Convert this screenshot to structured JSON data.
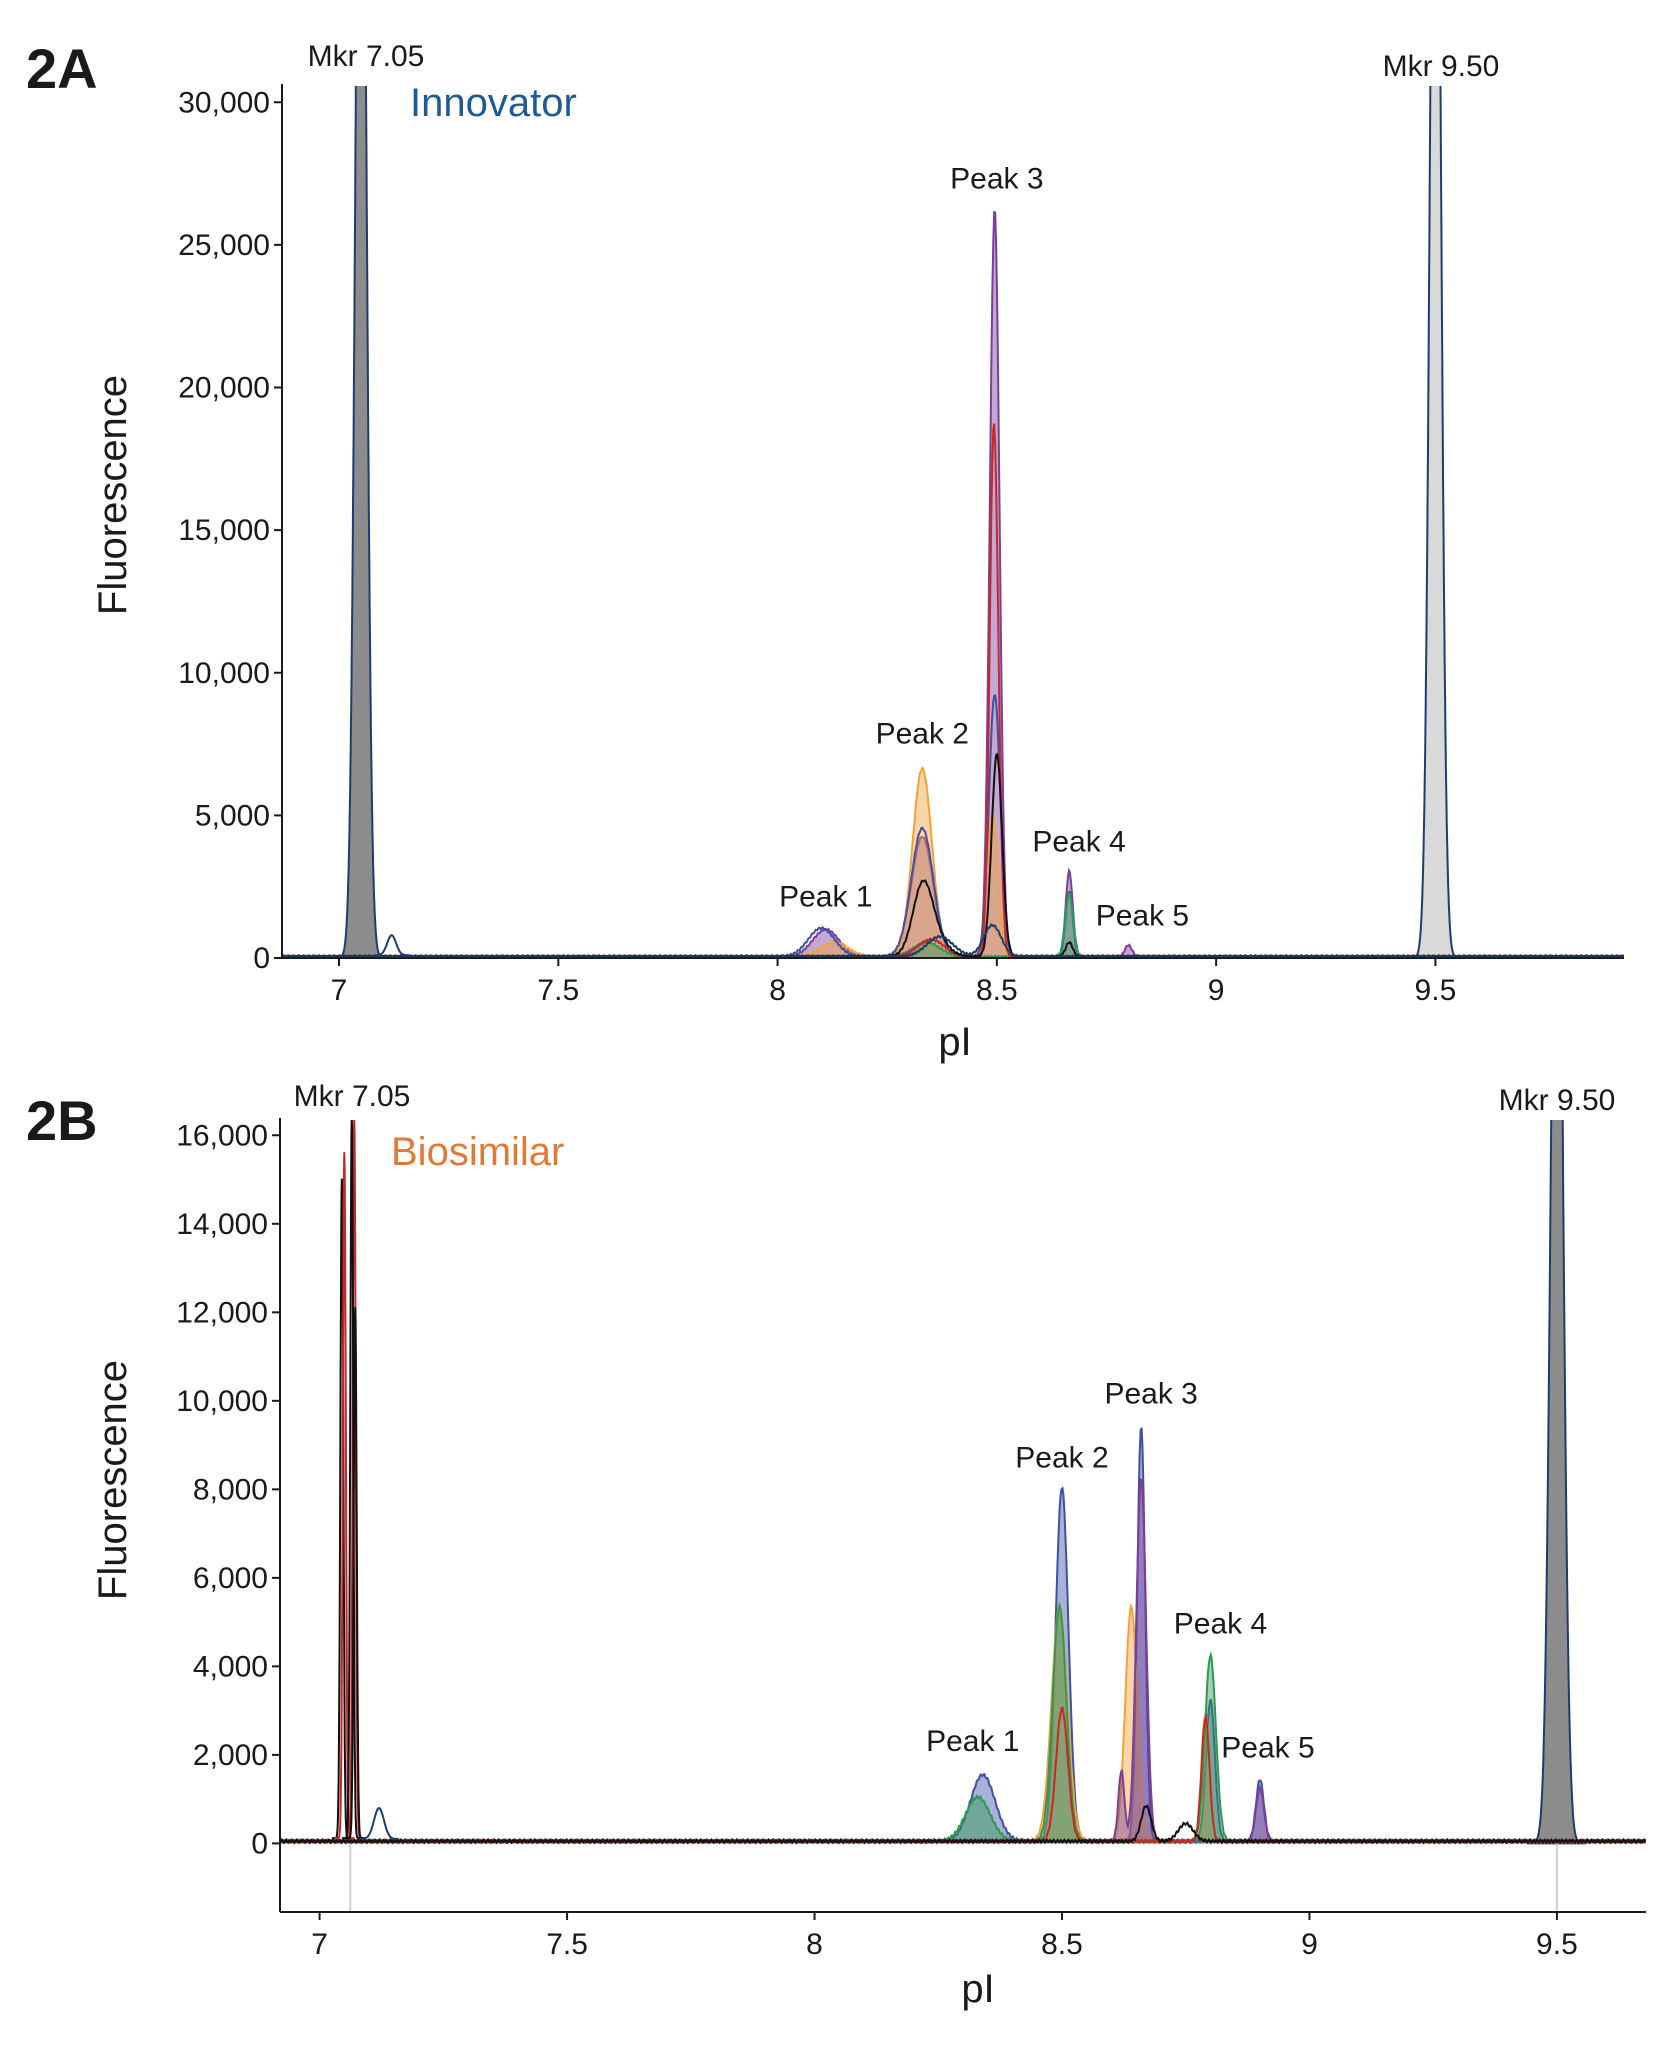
{
  "colors": {
    "axis": "#1a1a1a",
    "marker_fill": "#8c8c8c",
    "marker_light_fill": "#d9d9d9",
    "innovator_label": "#1f5a96",
    "biosimilar_label": "#e07a34",
    "trace_blue": "#3f51a5",
    "trace_purple": "#7b3f9a",
    "trace_orange": "#f5a23a",
    "trace_green": "#2e9a52",
    "trace_red": "#c62828",
    "trace_black": "#111111",
    "trace_navy": "#1c3d6e"
  },
  "chart_data": [
    {
      "panel": "2A",
      "type": "area",
      "title": "",
      "annotation": "Innovator",
      "xlabel": "pI",
      "ylabel": "Fluorescence",
      "xlim": [
        6.87,
        9.93
      ],
      "ylim": [
        0,
        30500
      ],
      "x_ticks": [
        7,
        7.5,
        8,
        8.5,
        9,
        9.5
      ],
      "x_tick_labels": [
        "7",
        "7.5",
        "8",
        "8.5",
        "9",
        "9.5"
      ],
      "y_ticks": [
        0,
        5000,
        10000,
        15000,
        20000,
        25000,
        30000
      ],
      "y_tick_labels": [
        "0",
        "5,000",
        "10,000",
        "15,000",
        "20,000",
        "25,000",
        "30,000"
      ],
      "grid": false,
      "markers": [
        {
          "label": "Mkr 7.05",
          "x": 7.05,
          "height": 30500,
          "fill": "dark"
        },
        {
          "label": "Mkr 9.50",
          "x": 9.5,
          "height": 30500,
          "fill": "light"
        }
      ],
      "peak_labels": [
        {
          "label": "Peak 1",
          "x": 8.11,
          "y": 900
        },
        {
          "label": "Peak 2",
          "x": 8.33,
          "y": 6600
        },
        {
          "label": "Peak 3",
          "x": 8.5,
          "y": 26200
        },
        {
          "label": "Peak 4",
          "x": 8.66,
          "y": 3100
        },
        {
          "label": "Peak 5",
          "x": 8.8,
          "y": 500
        }
      ],
      "series": [
        {
          "color": "purple",
          "fill": true,
          "peaks": [
            {
              "x": 8.11,
              "h": 950,
              "w": 0.03
            },
            {
              "x": 8.33,
              "h": 4200,
              "w": 0.025
            },
            {
              "x": 8.495,
              "h": 26200,
              "w": 0.011
            },
            {
              "x": 8.665,
              "h": 3000,
              "w": 0.008
            },
            {
              "x": 8.8,
              "h": 400,
              "w": 0.008
            }
          ]
        },
        {
          "color": "orange",
          "fill": true,
          "peaks": [
            {
              "x": 8.13,
              "h": 500,
              "w": 0.03
            },
            {
              "x": 8.33,
              "h": 6600,
              "w": 0.022
            },
            {
              "x": 8.49,
              "h": 5000,
              "w": 0.012
            }
          ]
        },
        {
          "color": "blue",
          "fill": false,
          "peaks": [
            {
              "x": 8.1,
              "h": 1000,
              "w": 0.03
            },
            {
              "x": 8.33,
              "h": 4500,
              "w": 0.025
            },
            {
              "x": 8.495,
              "h": 9200,
              "w": 0.013
            },
            {
              "x": 8.665,
              "h": 2300,
              "w": 0.008
            }
          ]
        },
        {
          "color": "green",
          "fill": true,
          "peaks": [
            {
              "x": 8.665,
              "h": 2200,
              "w": 0.009
            },
            {
              "x": 8.34,
              "h": 500,
              "w": 0.03
            }
          ]
        },
        {
          "color": "red",
          "fill": false,
          "peaks": [
            {
              "x": 8.495,
              "h": 14500,
              "w": 0.01
            },
            {
              "x": 8.35,
              "h": 600,
              "w": 0.03
            },
            {
              "x": 8.49,
              "h": 4800,
              "w": 0.008
            }
          ]
        },
        {
          "color": "black",
          "fill": false,
          "peaks": [
            {
              "x": 8.33,
              "h": 2000,
              "w": 0.022
            },
            {
              "x": 8.5,
              "h": 7100,
              "w": 0.012
            },
            {
              "x": 8.665,
              "h": 500,
              "w": 0.008
            },
            {
              "x": 8.35,
              "h": 800,
              "w": 0.03
            }
          ]
        },
        {
          "color": "navy",
          "fill": false,
          "peaks": [
            {
              "x": 8.37,
              "h": 700,
              "w": 0.03
            },
            {
              "x": 8.49,
              "h": 1100,
              "w": 0.02
            }
          ]
        }
      ]
    },
    {
      "panel": "2B",
      "type": "area",
      "title": "",
      "annotation": "Biosimilar",
      "xlabel": "pI",
      "ylabel": "Fluorescence",
      "xlim": [
        6.92,
        9.68
      ],
      "ylim": [
        -1550,
        16300
      ],
      "x_ticks": [
        7,
        7.5,
        8,
        8.5,
        9,
        9.5
      ],
      "x_tick_labels": [
        "7",
        "7.5",
        "8",
        "8.5",
        "9",
        "9.5"
      ],
      "y_ticks": [
        0,
        2000,
        4000,
        6000,
        8000,
        10000,
        12000,
        14000,
        16000
      ],
      "y_tick_labels": [
        "0",
        "2,000",
        "4,000",
        "6,000",
        "8,000",
        "10,000",
        "12,000",
        "14,000",
        "16,000"
      ],
      "grid": false,
      "markers": [
        {
          "label": "Mkr 7.05",
          "x": 7.05,
          "height": 16300,
          "fill": "none"
        },
        {
          "label": "Mkr 9.50",
          "x": 9.5,
          "height": 16300,
          "fill": "dark"
        }
      ],
      "peak_labels": [
        {
          "label": "Peak 1",
          "x": 8.34,
          "y": 1500
        },
        {
          "label": "Peak 2",
          "x": 8.5,
          "y": 8000
        },
        {
          "label": "Peak 3",
          "x": 8.66,
          "y": 9400
        },
        {
          "label": "Peak 4",
          "x": 8.8,
          "y": 4200
        },
        {
          "label": "Peak 5",
          "x": 8.9,
          "y": 1400
        }
      ],
      "series": [
        {
          "color": "blue",
          "fill": true,
          "peaks": [
            {
              "x": 8.34,
              "h": 1500,
              "w": 0.025
            },
            {
              "x": 8.5,
              "h": 8000,
              "w": 0.013
            },
            {
              "x": 8.66,
              "h": 9400,
              "w": 0.008
            },
            {
              "x": 8.8,
              "h": 3200,
              "w": 0.009
            },
            {
              "x": 8.9,
              "h": 1400,
              "w": 0.008
            }
          ]
        },
        {
          "color": "orange",
          "fill": true,
          "peaks": [
            {
              "x": 8.495,
              "h": 5300,
              "w": 0.016
            },
            {
              "x": 8.64,
              "h": 5300,
              "w": 0.012
            },
            {
              "x": 8.79,
              "h": 2900,
              "w": 0.008
            }
          ]
        },
        {
          "color": "purple",
          "fill": true,
          "peaks": [
            {
              "x": 8.66,
              "h": 8200,
              "w": 0.01
            },
            {
              "x": 8.9,
              "h": 1200,
              "w": 0.008
            },
            {
              "x": 8.62,
              "h": 1600,
              "w": 0.006
            }
          ]
        },
        {
          "color": "green",
          "fill": true,
          "peaks": [
            {
              "x": 8.8,
              "h": 4200,
              "w": 0.011
            },
            {
              "x": 8.495,
              "h": 5300,
              "w": 0.014
            },
            {
              "x": 8.33,
              "h": 1000,
              "w": 0.025
            }
          ]
        },
        {
          "color": "red",
          "fill": false,
          "peaks": [
            {
              "x": 8.79,
              "h": 2800,
              "w": 0.008
            },
            {
              "x": 8.5,
              "h": 3000,
              "w": 0.012
            }
          ]
        },
        {
          "color": "black",
          "fill": false,
          "peaks": [
            {
              "x": 8.67,
              "h": 800,
              "w": 0.01
            },
            {
              "x": 8.75,
              "h": 400,
              "w": 0.015
            }
          ]
        }
      ],
      "marker_spikes": [
        {
          "x": 7.045,
          "h": 14900,
          "color": "black"
        },
        {
          "x": 7.05,
          "h": 15500,
          "color": "red"
        },
        {
          "x": 7.07,
          "h": 16300,
          "color": "red"
        },
        {
          "x": 7.065,
          "h": 16300,
          "color": "black"
        },
        {
          "x": 7.072,
          "h": 12000,
          "color": "black"
        }
      ]
    }
  ],
  "panels": {
    "a": {
      "id": "2A",
      "marker_left": "Mkr 7.05",
      "marker_right": "Mkr 9.50"
    },
    "b": {
      "id": "2B",
      "marker_left": "Mkr 7.05",
      "marker_right": "Mkr 9.50"
    }
  }
}
